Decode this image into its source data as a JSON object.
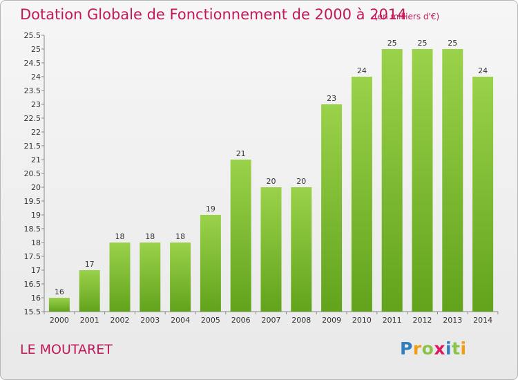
{
  "title": "Dotation Globale de Fonctionnement de 2000 à 2014",
  "subtitle": "(en milliers d'€)",
  "commune": "LE MOUTARET",
  "logo": {
    "text": "Proxiti",
    "letters": [
      {
        "ch": "P",
        "color": "#2f7fc1"
      },
      {
        "ch": "r",
        "color": "#f39c12"
      },
      {
        "ch": "o",
        "color": "#8bc34a"
      },
      {
        "ch": "x",
        "color": "#d81b60"
      },
      {
        "ch": "i",
        "color": "#2f7fc1"
      },
      {
        "ch": "t",
        "color": "#8bc34a"
      },
      {
        "ch": "i",
        "color": "#f39c12"
      }
    ]
  },
  "colors": {
    "title": "#c2185b",
    "bar_top": "#9ad24a",
    "bar_bottom": "#62a31c"
  },
  "chart_data": {
    "type": "bar",
    "categories": [
      "2000",
      "2001",
      "2002",
      "2003",
      "2004",
      "2005",
      "2006",
      "2007",
      "2008",
      "2009",
      "2010",
      "2011",
      "2012",
      "2013",
      "2014"
    ],
    "values": [
      16,
      17,
      18,
      18,
      18,
      19,
      21,
      20,
      20,
      23,
      24,
      25,
      25,
      25,
      24
    ],
    "value_labels": [
      "16",
      "17",
      "18",
      "18",
      "18",
      "19",
      "21",
      "20",
      "20",
      "23",
      "24",
      "25",
      "25",
      "25",
      "24"
    ],
    "ylim": [
      15.5,
      25.5
    ],
    "y_ticks": [
      "15.5",
      "16",
      "16.5",
      "17",
      "17.5",
      "18",
      "18.5",
      "19",
      "19.5",
      "20",
      "20.5",
      "21",
      "21.5",
      "22",
      "22.5",
      "23",
      "23.5",
      "24",
      "24.5",
      "25",
      "25.5"
    ],
    "grid": false,
    "xlabel": "",
    "ylabel": ""
  }
}
